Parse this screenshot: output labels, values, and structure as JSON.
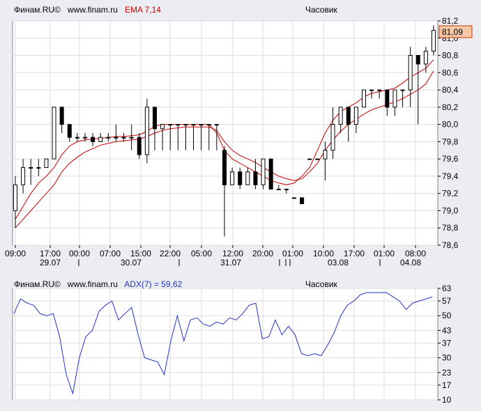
{
  "colors": {
    "background": "#ecedf2",
    "plot": "#ffffff",
    "grid": "#dddddd",
    "candle": "#000000",
    "ema": "#cc0000",
    "adx": "#2233cc",
    "price_box": "#f5c8a8"
  },
  "main_header": {
    "brand": "Финам.RU©",
    "site": "www.finam.ru",
    "indicator": "EMA 7,14",
    "period": "Часовик"
  },
  "adx_header": {
    "brand": "Финам.RU©",
    "site": "www.finam.ru",
    "indicator": "ADX(7) = 59,62",
    "period": "Часовик"
  },
  "time_labels": [
    "09:00",
    "17:00",
    "00:00",
    "07:00",
    "15:00",
    "22:00",
    "05:00",
    "12:00",
    "20:00",
    "01:00",
    "10:00",
    "17:00",
    "01:00",
    "08:00"
  ],
  "date_labels": [
    "29.07",
    "30.07",
    "31.07",
    "03.08",
    "04.08"
  ],
  "chart_data": [
    {
      "type": "candlestick",
      "indicator": "EMA 7,14",
      "ylim": [
        78.6,
        81.2
      ],
      "y_ticks": [
        "78,6",
        "78,8",
        "79,0",
        "79,2",
        "79,4",
        "79,6",
        "79,8",
        "80,0",
        "80,2",
        "80,4",
        "80,6",
        "80,8",
        "81,0",
        "81,2"
      ],
      "last_price": "81,09",
      "candles": [
        [
          79.0,
          79.4,
          78.8,
          79.3
        ],
        [
          79.3,
          79.6,
          79.2,
          79.5
        ],
        [
          79.5,
          79.6,
          79.3,
          79.5
        ],
        [
          79.5,
          79.6,
          79.4,
          79.5
        ],
        [
          79.5,
          79.6,
          79.5,
          79.6
        ],
        [
          79.6,
          80.2,
          79.6,
          80.2
        ],
        [
          80.2,
          80.2,
          79.9,
          80.0
        ],
        [
          80.0,
          80.0,
          79.8,
          79.85
        ],
        [
          79.85,
          79.9,
          79.8,
          79.85
        ],
        [
          79.85,
          79.9,
          79.8,
          79.85
        ],
        [
          79.85,
          79.9,
          79.75,
          79.8
        ],
        [
          79.8,
          79.9,
          79.8,
          79.85
        ],
        [
          79.85,
          79.9,
          79.8,
          79.85
        ],
        [
          79.85,
          80.0,
          79.8,
          79.85
        ],
        [
          79.85,
          79.9,
          79.8,
          79.85
        ],
        [
          79.85,
          80.0,
          79.7,
          79.85
        ],
        [
          79.85,
          79.9,
          79.6,
          79.65
        ],
        [
          79.65,
          80.3,
          79.55,
          80.2
        ],
        [
          80.2,
          80.2,
          79.7,
          79.95
        ],
        [
          79.95,
          80.0,
          79.7,
          80.0
        ],
        [
          80.0,
          80.0,
          79.7,
          80.0
        ],
        [
          80.0,
          80.0,
          79.7,
          80.0
        ],
        [
          80.0,
          80.0,
          79.7,
          80.0
        ],
        [
          80.0,
          80.0,
          79.7,
          80.0
        ],
        [
          80.0,
          80.0,
          79.7,
          80.0
        ],
        [
          80.0,
          80.0,
          79.7,
          80.0
        ],
        [
          80.0,
          80.0,
          79.7,
          80.0
        ],
        [
          79.7,
          79.75,
          78.7,
          79.3
        ],
        [
          79.3,
          79.5,
          79.3,
          79.45
        ],
        [
          79.45,
          79.5,
          79.25,
          79.3
        ],
        [
          79.3,
          79.5,
          79.3,
          79.45
        ],
        [
          79.45,
          79.6,
          79.25,
          79.3
        ],
        [
          79.3,
          79.6,
          79.25,
          79.6
        ],
        [
          79.6,
          79.6,
          79.25,
          79.25
        ],
        [
          79.25,
          79.3,
          79.25,
          79.25
        ],
        [
          79.25,
          79.25,
          79.2,
          79.25
        ],
        [
          79.15,
          79.15,
          79.15,
          79.15
        ],
        [
          79.15,
          79.15,
          79.08,
          79.08
        ],
        [
          79.6,
          79.6,
          79.6,
          79.6
        ],
        [
          79.6,
          79.6,
          79.6,
          79.6
        ],
        [
          79.6,
          79.8,
          79.35,
          79.7
        ],
        [
          79.7,
          80.2,
          79.6,
          80.0
        ],
        [
          80.0,
          80.2,
          79.9,
          80.2
        ],
        [
          80.2,
          80.2,
          79.8,
          80.0
        ],
        [
          80.0,
          80.2,
          79.9,
          80.2
        ],
        [
          80.2,
          80.4,
          80.2,
          80.4
        ],
        [
          80.4,
          80.4,
          80.3,
          80.4
        ],
        [
          80.4,
          80.4,
          80.3,
          80.4
        ],
        [
          80.4,
          80.4,
          80.1,
          80.2
        ],
        [
          80.2,
          80.4,
          80.1,
          80.4
        ],
        [
          80.4,
          80.4,
          80.2,
          80.4
        ],
        [
          80.4,
          80.9,
          80.2,
          80.8
        ],
        [
          80.8,
          80.8,
          80.0,
          80.7
        ],
        [
          80.7,
          80.9,
          80.6,
          80.85
        ],
        [
          80.85,
          81.15,
          80.8,
          81.09
        ]
      ],
      "series": [
        {
          "name": "EMA 7",
          "values": [
            78.9,
            79.05,
            79.2,
            79.32,
            79.4,
            79.5,
            79.65,
            79.75,
            79.8,
            79.82,
            79.83,
            79.84,
            79.85,
            79.86,
            79.86,
            79.87,
            79.88,
            79.92,
            79.98,
            80.0,
            80.0,
            80.0,
            80.0,
            80.0,
            80.0,
            80.0,
            79.9,
            79.7,
            79.6,
            79.55,
            79.5,
            79.45,
            79.4,
            79.35,
            79.32,
            79.3,
            79.32,
            79.4,
            79.5,
            79.7,
            79.9,
            80.05,
            80.15,
            80.2,
            80.25,
            80.32,
            80.36,
            80.38,
            80.4,
            80.42,
            80.48,
            80.55,
            80.6,
            80.65,
            80.75
          ]
        },
        {
          "name": "EMA 14",
          "values": [
            78.8,
            78.9,
            79.0,
            79.1,
            79.2,
            79.3,
            79.45,
            79.55,
            79.62,
            79.68,
            79.72,
            79.76,
            79.78,
            79.8,
            79.81,
            79.82,
            79.83,
            79.86,
            79.9,
            79.93,
            79.95,
            79.96,
            79.97,
            79.97,
            79.97,
            79.97,
            79.93,
            79.8,
            79.7,
            79.64,
            79.6,
            79.56,
            79.5,
            79.45,
            79.4,
            79.37,
            79.35,
            79.37,
            79.45,
            79.55,
            79.7,
            79.82,
            79.92,
            80.0,
            80.06,
            80.12,
            80.17,
            80.2,
            80.23,
            80.26,
            80.3,
            80.35,
            80.4,
            80.47,
            80.62
          ]
        }
      ]
    },
    {
      "type": "line",
      "indicator": "ADX(7)",
      "ylim": [
        10,
        63
      ],
      "y_ticks": [
        "63",
        "57",
        "50",
        "43",
        "37",
        "30",
        "23",
        "17",
        "10"
      ],
      "series": [
        {
          "name": "ADX(7)",
          "values": [
            51,
            58,
            56,
            55,
            51,
            50,
            51,
            40,
            22,
            13,
            30,
            40,
            43,
            52,
            55,
            57,
            48,
            51,
            54,
            41,
            30,
            29,
            28,
            22,
            38,
            50,
            38,
            48,
            49,
            46,
            45,
            47,
            46,
            49,
            48,
            51,
            55,
            56,
            39,
            40,
            48,
            41,
            45,
            41,
            32,
            31,
            32,
            31,
            36,
            42,
            50,
            55,
            57,
            60,
            61,
            61,
            61,
            61,
            59,
            57,
            53,
            56,
            57,
            58,
            59
          ]
        }
      ]
    }
  ]
}
